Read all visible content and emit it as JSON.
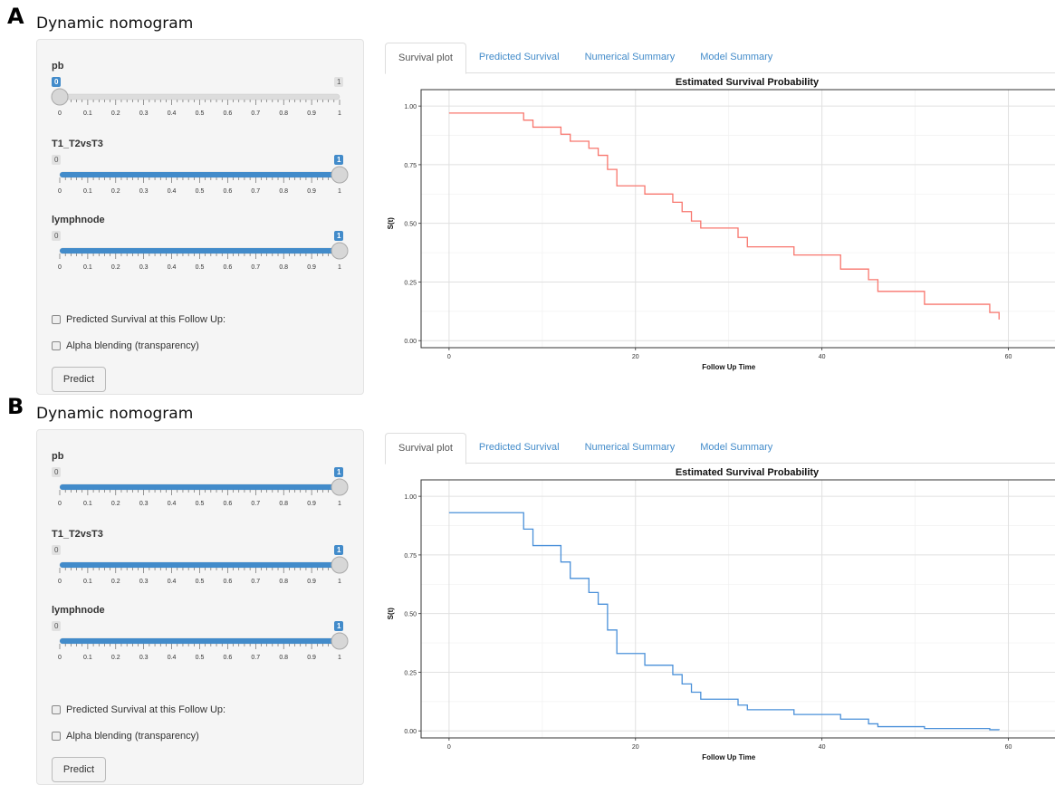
{
  "panels": [
    {
      "letter": "A",
      "title": "Dynamic nomogram",
      "sliders": [
        {
          "label": "pb",
          "value": 0,
          "min_label": "0",
          "max_label": "1"
        },
        {
          "label": "T1_T2vsT3",
          "value": 1,
          "min_label": "0",
          "max_label": "1"
        },
        {
          "label": "lymphnode",
          "value": 1,
          "min_label": "0",
          "max_label": "1"
        }
      ],
      "tick_labels": [
        "0",
        "0.1",
        "0.2",
        "0.3",
        "0.4",
        "0.5",
        "0.6",
        "0.7",
        "0.8",
        "0.9",
        "1"
      ],
      "checkbox_predicted": "Predicted Survival at this Follow Up:",
      "checkbox_alpha": "Alpha blending (transparency)",
      "predict_label": "Predict",
      "tabs": [
        "Survival plot",
        "Predicted Survival",
        "Numerical Summary",
        "Model Summary"
      ],
      "active_tab": "Survival plot",
      "chart_data": {
        "type": "line",
        "title": "Estimated Survival Probability",
        "xlabel": "Follow Up Time",
        "ylabel": "S(t)",
        "xlim": [
          -3,
          65
        ],
        "ylim": [
          -0.03,
          1.07
        ],
        "x_ticks": [
          "0",
          "20",
          "40",
          "60"
        ],
        "y_ticks": [
          "0.00",
          "0.25",
          "0.50",
          "0.75",
          "1.00"
        ],
        "grid": true,
        "color": "#f8766d",
        "series": [
          {
            "step": true,
            "x": [
              0,
              8,
              9,
              12,
              13,
              15,
              16,
              17,
              18,
              21,
              24,
              25,
              26,
              27,
              31,
              32,
              37,
              42,
              45,
              46,
              51,
              58,
              59
            ],
            "y": [
              0.97,
              0.94,
              0.91,
              0.88,
              0.85,
              0.82,
              0.79,
              0.73,
              0.66,
              0.625,
              0.59,
              0.55,
              0.51,
              0.48,
              0.44,
              0.4,
              0.365,
              0.305,
              0.26,
              0.21,
              0.155,
              0.12,
              0.09
            ]
          }
        ]
      }
    },
    {
      "letter": "B",
      "title": "Dynamic nomogram",
      "sliders": [
        {
          "label": "pb",
          "value": 1,
          "min_label": "0",
          "max_label": "1"
        },
        {
          "label": "T1_T2vsT3",
          "value": 1,
          "min_label": "0",
          "max_label": "1"
        },
        {
          "label": "lymphnode",
          "value": 1,
          "min_label": "0",
          "max_label": "1"
        }
      ],
      "tick_labels": [
        "0",
        "0.1",
        "0.2",
        "0.3",
        "0.4",
        "0.5",
        "0.6",
        "0.7",
        "0.8",
        "0.9",
        "1"
      ],
      "checkbox_predicted": "Predicted Survival at this Follow Up:",
      "checkbox_alpha": "Alpha blending (transparency)",
      "predict_label": "Predict",
      "tabs": [
        "Survival plot",
        "Predicted Survival",
        "Numerical Summary",
        "Model Summary"
      ],
      "active_tab": "Survival plot",
      "chart_data": {
        "type": "line",
        "title": "Estimated Survival Probability",
        "xlabel": "Follow Up Time",
        "ylabel": "S(t)",
        "xlim": [
          -3,
          65
        ],
        "ylim": [
          -0.03,
          1.07
        ],
        "x_ticks": [
          "0",
          "20",
          "40",
          "60"
        ],
        "y_ticks": [
          "0.00",
          "0.25",
          "0.50",
          "0.75",
          "1.00"
        ],
        "grid": true,
        "color": "#4a90d9",
        "series": [
          {
            "step": true,
            "x": [
              0,
              8,
              9,
              12,
              13,
              15,
              16,
              17,
              18,
              21,
              24,
              25,
              26,
              27,
              31,
              32,
              37,
              42,
              45,
              46,
              51,
              58,
              59
            ],
            "y": [
              0.93,
              0.86,
              0.79,
              0.72,
              0.65,
              0.59,
              0.54,
              0.43,
              0.33,
              0.28,
              0.24,
              0.2,
              0.165,
              0.135,
              0.11,
              0.09,
              0.07,
              0.05,
              0.03,
              0.018,
              0.01,
              0.005,
              0.004
            ]
          }
        ]
      }
    }
  ]
}
